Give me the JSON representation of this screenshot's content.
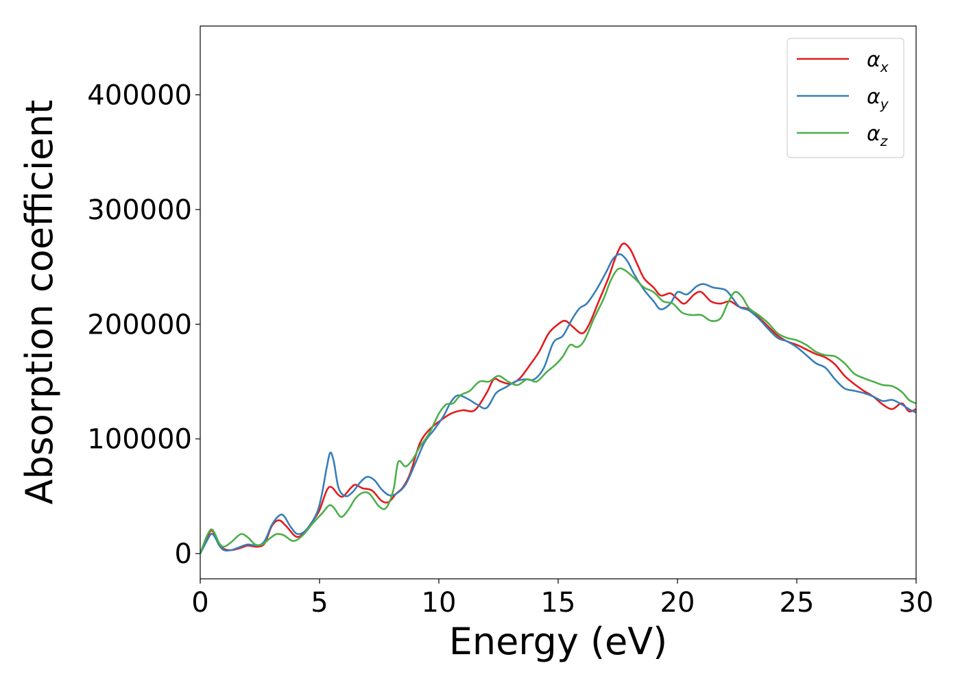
{
  "chart_data": {
    "type": "line",
    "title": "",
    "xlabel": "Energy (eV)",
    "ylabel": "Absorption coefficient",
    "xlim": [
      0,
      30
    ],
    "ylim": [
      -22000,
      460000
    ],
    "xticks": [
      0,
      5,
      10,
      15,
      20,
      25,
      30
    ],
    "xtick_labels": [
      "0",
      "5",
      "10",
      "15",
      "20",
      "25",
      "30"
    ],
    "yticks": [
      0,
      100000,
      200000,
      300000,
      400000
    ],
    "ytick_labels": [
      "0",
      "100000",
      "200000",
      "300000",
      "400000"
    ],
    "grid": false,
    "legend_position": "top-right",
    "series": [
      {
        "name": "α",
        "subscript": "x",
        "color": "#e41a1c",
        "points": [
          [
            0,
            0
          ],
          [
            0.25,
            12000
          ],
          [
            0.45,
            20000
          ],
          [
            0.6,
            17000
          ],
          [
            0.8,
            8000
          ],
          [
            1.0,
            4000
          ],
          [
            1.3,
            3000
          ],
          [
            1.7,
            5000
          ],
          [
            2.0,
            7000
          ],
          [
            2.4,
            6000
          ],
          [
            2.7,
            9000
          ],
          [
            3.0,
            24000
          ],
          [
            3.3,
            29000
          ],
          [
            3.6,
            24000
          ],
          [
            4.0,
            15000
          ],
          [
            4.3,
            17000
          ],
          [
            4.7,
            28000
          ],
          [
            5.0,
            38000
          ],
          [
            5.3,
            55000
          ],
          [
            5.5,
            58000
          ],
          [
            5.8,
            51000
          ],
          [
            6.0,
            50000
          ],
          [
            6.3,
            57000
          ],
          [
            6.5,
            60000
          ],
          [
            6.8,
            57000
          ],
          [
            7.2,
            55000
          ],
          [
            7.6,
            46000
          ],
          [
            7.9,
            45000
          ],
          [
            8.2,
            52000
          ],
          [
            8.5,
            58000
          ],
          [
            8.8,
            70000
          ],
          [
            9.2,
            96000
          ],
          [
            9.6,
            108000
          ],
          [
            10.0,
            115000
          ],
          [
            10.5,
            122000
          ],
          [
            11.0,
            125000
          ],
          [
            11.5,
            125000
          ],
          [
            12.0,
            140000
          ],
          [
            12.3,
            152000
          ],
          [
            12.6,
            150000
          ],
          [
            13.0,
            148000
          ],
          [
            13.4,
            153000
          ],
          [
            13.8,
            164000
          ],
          [
            14.2,
            176000
          ],
          [
            14.6,
            192000
          ],
          [
            15.0,
            200000
          ],
          [
            15.3,
            203000
          ],
          [
            15.6,
            198000
          ],
          [
            16.0,
            192000
          ],
          [
            16.3,
            200000
          ],
          [
            16.7,
            220000
          ],
          [
            17.1,
            240000
          ],
          [
            17.4,
            258000
          ],
          [
            17.7,
            270000
          ],
          [
            18.0,
            266000
          ],
          [
            18.3,
            253000
          ],
          [
            18.6,
            240000
          ],
          [
            19.0,
            232000
          ],
          [
            19.3,
            225000
          ],
          [
            19.7,
            227000
          ],
          [
            20.0,
            222000
          ],
          [
            20.3,
            218000
          ],
          [
            20.7,
            226000
          ],
          [
            21.0,
            228000
          ],
          [
            21.4,
            220000
          ],
          [
            21.8,
            218000
          ],
          [
            22.2,
            220000
          ],
          [
            22.6,
            215000
          ],
          [
            23.0,
            213000
          ],
          [
            23.4,
            206000
          ],
          [
            23.8,
            198000
          ],
          [
            24.2,
            190000
          ],
          [
            24.6,
            185000
          ],
          [
            25.0,
            182000
          ],
          [
            25.4,
            178000
          ],
          [
            25.8,
            174000
          ],
          [
            26.2,
            171000
          ],
          [
            26.6,
            165000
          ],
          [
            27.0,
            155000
          ],
          [
            27.4,
            148000
          ],
          [
            27.8,
            142000
          ],
          [
            28.2,
            137000
          ],
          [
            28.6,
            130000
          ],
          [
            29.0,
            126000
          ],
          [
            29.4,
            131000
          ],
          [
            29.7,
            124000
          ],
          [
            30.0,
            126000
          ]
        ]
      },
      {
        "name": "α",
        "subscript": "y",
        "color": "#377eb8",
        "points": [
          [
            0,
            0
          ],
          [
            0.25,
            10000
          ],
          [
            0.45,
            17000
          ],
          [
            0.6,
            15000
          ],
          [
            0.8,
            7000
          ],
          [
            1.0,
            3000
          ],
          [
            1.3,
            3000
          ],
          [
            1.7,
            6000
          ],
          [
            2.0,
            8000
          ],
          [
            2.4,
            7000
          ],
          [
            2.7,
            11000
          ],
          [
            3.0,
            25000
          ],
          [
            3.3,
            33000
          ],
          [
            3.5,
            33000
          ],
          [
            3.8,
            23000
          ],
          [
            4.1,
            17000
          ],
          [
            4.5,
            22000
          ],
          [
            4.9,
            36000
          ],
          [
            5.1,
            52000
          ],
          [
            5.3,
            75000
          ],
          [
            5.45,
            88000
          ],
          [
            5.6,
            80000
          ],
          [
            5.8,
            57000
          ],
          [
            6.1,
            50000
          ],
          [
            6.4,
            54000
          ],
          [
            6.7,
            62000
          ],
          [
            7.0,
            67000
          ],
          [
            7.3,
            64000
          ],
          [
            7.6,
            56000
          ],
          [
            7.9,
            51000
          ],
          [
            8.2,
            52000
          ],
          [
            8.6,
            60000
          ],
          [
            9.0,
            78000
          ],
          [
            9.4,
            97000
          ],
          [
            9.8,
            108000
          ],
          [
            10.2,
            120000
          ],
          [
            10.5,
            132000
          ],
          [
            10.8,
            138000
          ],
          [
            11.2,
            135000
          ],
          [
            11.6,
            130000
          ],
          [
            12.0,
            127000
          ],
          [
            12.4,
            140000
          ],
          [
            12.8,
            145000
          ],
          [
            13.2,
            150000
          ],
          [
            13.6,
            152000
          ],
          [
            14.0,
            152000
          ],
          [
            14.4,
            162000
          ],
          [
            14.8,
            184000
          ],
          [
            15.2,
            190000
          ],
          [
            15.6,
            205000
          ],
          [
            15.9,
            214000
          ],
          [
            16.2,
            218000
          ],
          [
            16.6,
            230000
          ],
          [
            17.0,
            245000
          ],
          [
            17.3,
            257000
          ],
          [
            17.6,
            261000
          ],
          [
            17.9,
            255000
          ],
          [
            18.2,
            243000
          ],
          [
            18.6,
            230000
          ],
          [
            19.0,
            220000
          ],
          [
            19.3,
            213000
          ],
          [
            19.7,
            218000
          ],
          [
            20.0,
            228000
          ],
          [
            20.4,
            226000
          ],
          [
            20.8,
            233000
          ],
          [
            21.1,
            235000
          ],
          [
            21.5,
            232000
          ],
          [
            22.0,
            230000
          ],
          [
            22.3,
            223000
          ],
          [
            22.6,
            215000
          ],
          [
            23.0,
            212000
          ],
          [
            23.4,
            205000
          ],
          [
            23.8,
            196000
          ],
          [
            24.2,
            188000
          ],
          [
            24.6,
            185000
          ],
          [
            25.0,
            180000
          ],
          [
            25.4,
            173000
          ],
          [
            25.8,
            166000
          ],
          [
            26.2,
            162000
          ],
          [
            26.6,
            152000
          ],
          [
            27.0,
            144000
          ],
          [
            27.4,
            142000
          ],
          [
            27.8,
            140000
          ],
          [
            28.2,
            137000
          ],
          [
            28.6,
            133000
          ],
          [
            29.0,
            134000
          ],
          [
            29.4,
            130000
          ],
          [
            29.7,
            126000
          ],
          [
            30.0,
            123000
          ]
        ]
      },
      {
        "name": "α",
        "subscript": "z",
        "color": "#4daf4a",
        "points": [
          [
            0,
            0
          ],
          [
            0.25,
            14000
          ],
          [
            0.45,
            21000
          ],
          [
            0.6,
            18000
          ],
          [
            0.8,
            9000
          ],
          [
            1.0,
            6000
          ],
          [
            1.3,
            10000
          ],
          [
            1.7,
            17000
          ],
          [
            2.0,
            14000
          ],
          [
            2.3,
            8000
          ],
          [
            2.6,
            8000
          ],
          [
            2.9,
            13000
          ],
          [
            3.2,
            17000
          ],
          [
            3.5,
            16000
          ],
          [
            3.9,
            11000
          ],
          [
            4.3,
            16000
          ],
          [
            4.7,
            26000
          ],
          [
            5.1,
            35000
          ],
          [
            5.4,
            42000
          ],
          [
            5.6,
            40000
          ],
          [
            5.9,
            32000
          ],
          [
            6.2,
            38000
          ],
          [
            6.5,
            48000
          ],
          [
            6.8,
            53000
          ],
          [
            7.1,
            52000
          ],
          [
            7.5,
            41000
          ],
          [
            7.8,
            40000
          ],
          [
            8.1,
            56000
          ],
          [
            8.3,
            80000
          ],
          [
            8.6,
            76000
          ],
          [
            8.9,
            82000
          ],
          [
            9.2,
            93000
          ],
          [
            9.6,
            105000
          ],
          [
            10.0,
            122000
          ],
          [
            10.3,
            130000
          ],
          [
            10.6,
            131000
          ],
          [
            10.9,
            138000
          ],
          [
            11.3,
            142000
          ],
          [
            11.7,
            150000
          ],
          [
            12.1,
            150000
          ],
          [
            12.5,
            155000
          ],
          [
            12.9,
            150000
          ],
          [
            13.3,
            147000
          ],
          [
            13.7,
            152000
          ],
          [
            14.1,
            150000
          ],
          [
            14.5,
            158000
          ],
          [
            14.9,
            165000
          ],
          [
            15.2,
            172000
          ],
          [
            15.5,
            182000
          ],
          [
            15.8,
            180000
          ],
          [
            16.1,
            186000
          ],
          [
            16.5,
            205000
          ],
          [
            16.9,
            222000
          ],
          [
            17.2,
            238000
          ],
          [
            17.5,
            248000
          ],
          [
            17.8,
            247000
          ],
          [
            18.2,
            240000
          ],
          [
            18.6,
            232000
          ],
          [
            19.0,
            228000
          ],
          [
            19.4,
            220000
          ],
          [
            19.8,
            218000
          ],
          [
            20.2,
            210000
          ],
          [
            20.6,
            208000
          ],
          [
            21.0,
            208000
          ],
          [
            21.4,
            203000
          ],
          [
            21.8,
            205000
          ],
          [
            22.1,
            218000
          ],
          [
            22.4,
            228000
          ],
          [
            22.7,
            224000
          ],
          [
            23.0,
            214000
          ],
          [
            23.4,
            208000
          ],
          [
            23.8,
            201000
          ],
          [
            24.2,
            192000
          ],
          [
            24.6,
            188000
          ],
          [
            25.0,
            186000
          ],
          [
            25.4,
            182000
          ],
          [
            25.8,
            176000
          ],
          [
            26.2,
            173000
          ],
          [
            26.6,
            172000
          ],
          [
            27.0,
            166000
          ],
          [
            27.4,
            157000
          ],
          [
            27.8,
            153000
          ],
          [
            28.2,
            150000
          ],
          [
            28.6,
            147000
          ],
          [
            29.0,
            146000
          ],
          [
            29.4,
            141000
          ],
          [
            29.7,
            134000
          ],
          [
            30.0,
            131000
          ]
        ]
      }
    ]
  }
}
